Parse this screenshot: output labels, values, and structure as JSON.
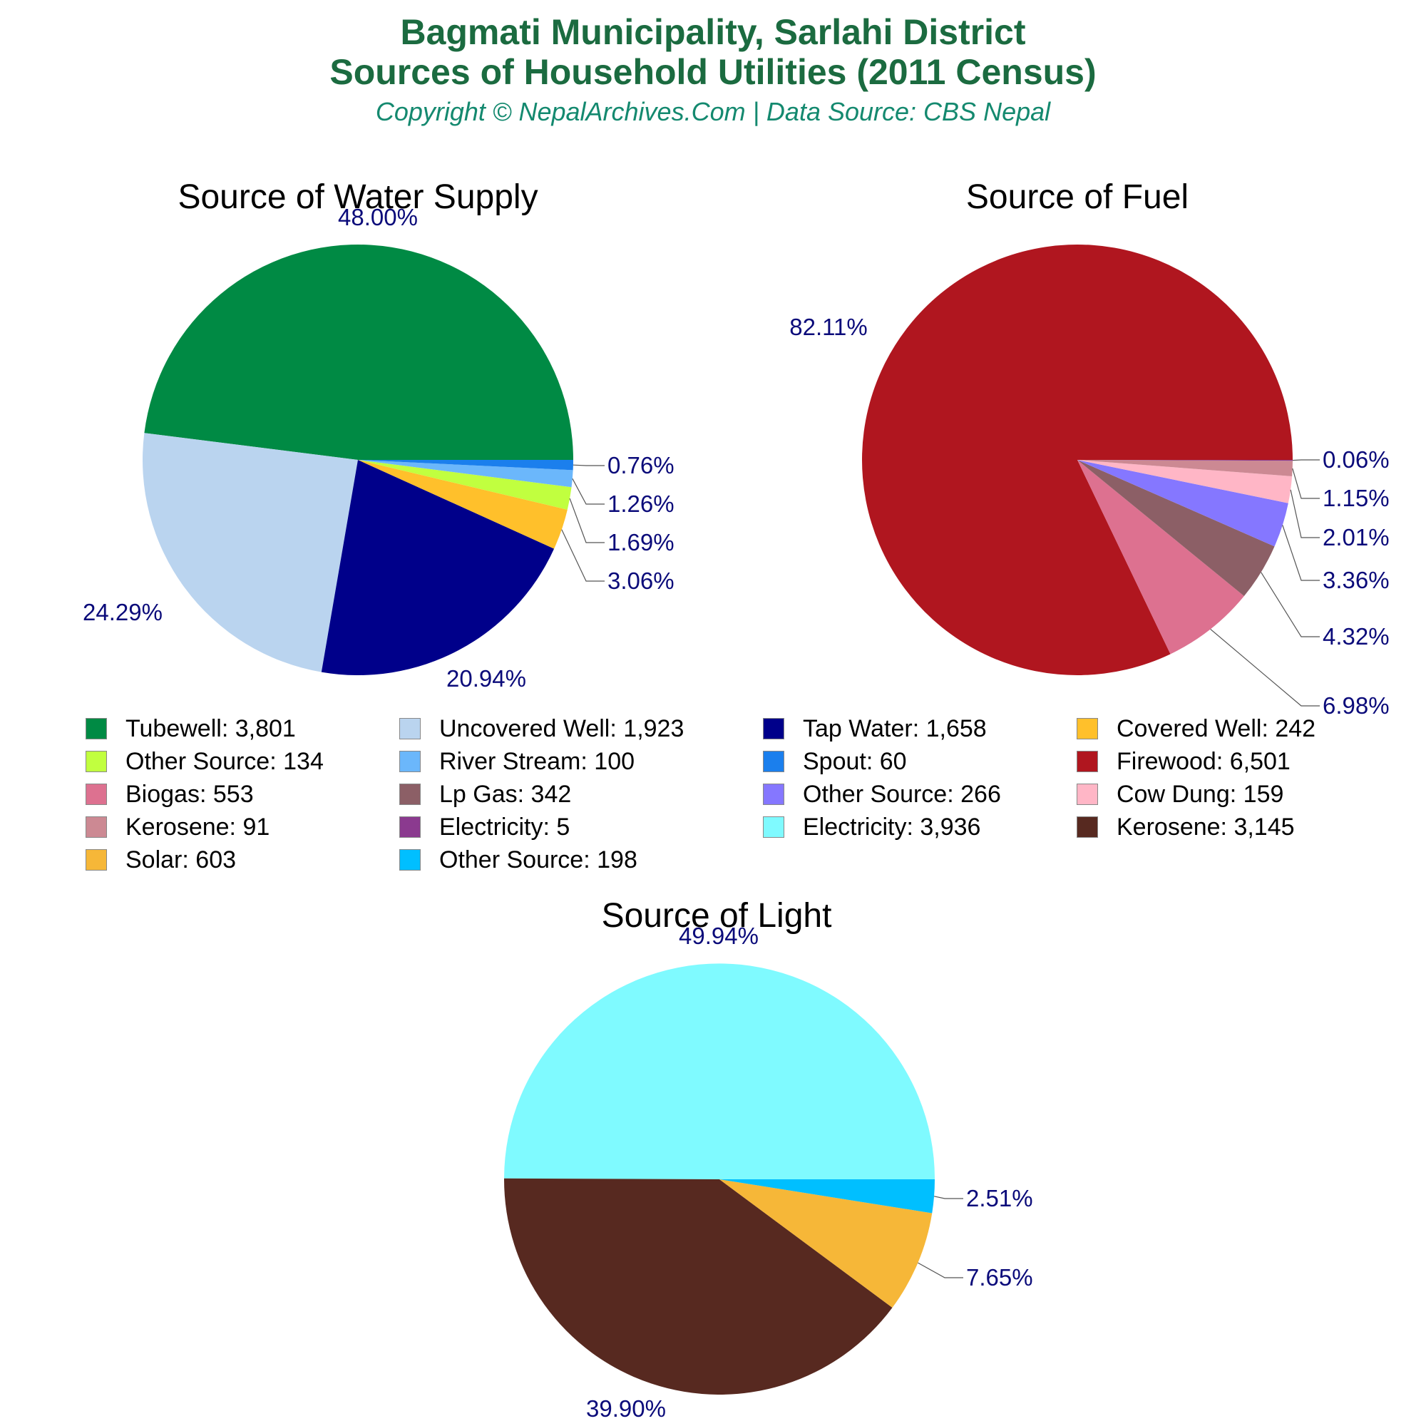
{
  "title_line1": "Bagmati Municipality, Sarlahi District",
  "title_line2": "Sources of Household Utilities (2011 Census)",
  "subtitle": "Copyright © NepalArchives.Com | Data Source: CBS Nepal",
  "chart_data": [
    {
      "type": "pie",
      "title": "Source of Water Supply",
      "slices": [
        {
          "label": "Tubewell",
          "value": 3801,
          "value_text": "3,801",
          "percent": "48.00%",
          "color": "#008a44"
        },
        {
          "label": "Uncovered Well",
          "value": 1923,
          "value_text": "1,923",
          "percent": "24.29%",
          "color": "#bad4ef"
        },
        {
          "label": "Tap Water",
          "value": 1658,
          "value_text": "1,658",
          "percent": "20.94%",
          "color": "#00008a"
        },
        {
          "label": "Covered Well",
          "value": 242,
          "value_text": "242",
          "percent": "3.06%",
          "color": "#ffc02b"
        },
        {
          "label": "Other Source",
          "value": 134,
          "value_text": "134",
          "percent": "1.69%",
          "color": "#c1ff3f"
        },
        {
          "label": "River Stream",
          "value": 100,
          "value_text": "100",
          "percent": "1.26%",
          "color": "#6bb7fb"
        },
        {
          "label": "Spout",
          "value": 60,
          "value_text": "60",
          "percent": "0.76%",
          "color": "#1b7fed"
        }
      ]
    },
    {
      "type": "pie",
      "title": "Source of Fuel",
      "slices": [
        {
          "label": "Firewood",
          "value": 6501,
          "value_text": "6,501",
          "percent": "82.11%",
          "color": "#b0161f"
        },
        {
          "label": "Biogas",
          "value": 553,
          "value_text": "553",
          "percent": "6.98%",
          "color": "#dd7190"
        },
        {
          "label": "Lp Gas",
          "value": 342,
          "value_text": "342",
          "percent": "4.32%",
          "color": "#8c5f66"
        },
        {
          "label": "Other Source",
          "value": 266,
          "value_text": "266",
          "percent": "3.36%",
          "color": "#8577ff"
        },
        {
          "label": "Cow Dung",
          "value": 159,
          "value_text": "159",
          "percent": "2.01%",
          "color": "#ffb6c6"
        },
        {
          "label": "Kerosene",
          "value": 91,
          "value_text": "91",
          "percent": "1.15%",
          "color": "#cc8993"
        },
        {
          "label": "Electricity",
          "value": 5,
          "value_text": "5",
          "percent": "0.06%",
          "color": "#8b3a8f"
        }
      ]
    },
    {
      "type": "pie",
      "title": "Source of Light",
      "slices": [
        {
          "label": "Electricity",
          "value": 3936,
          "value_text": "3,936",
          "percent": "49.94%",
          "color": "#7ffaff"
        },
        {
          "label": "Kerosene",
          "value": 3145,
          "value_text": "3,145",
          "percent": "39.90%",
          "color": "#572920"
        },
        {
          "label": "Solar",
          "value": 603,
          "value_text": "603",
          "percent": "7.65%",
          "color": "#f6b738"
        },
        {
          "label": "Other Source",
          "value": 198,
          "value_text": "198",
          "percent": "2.51%",
          "color": "#00bfff"
        }
      ]
    }
  ]
}
